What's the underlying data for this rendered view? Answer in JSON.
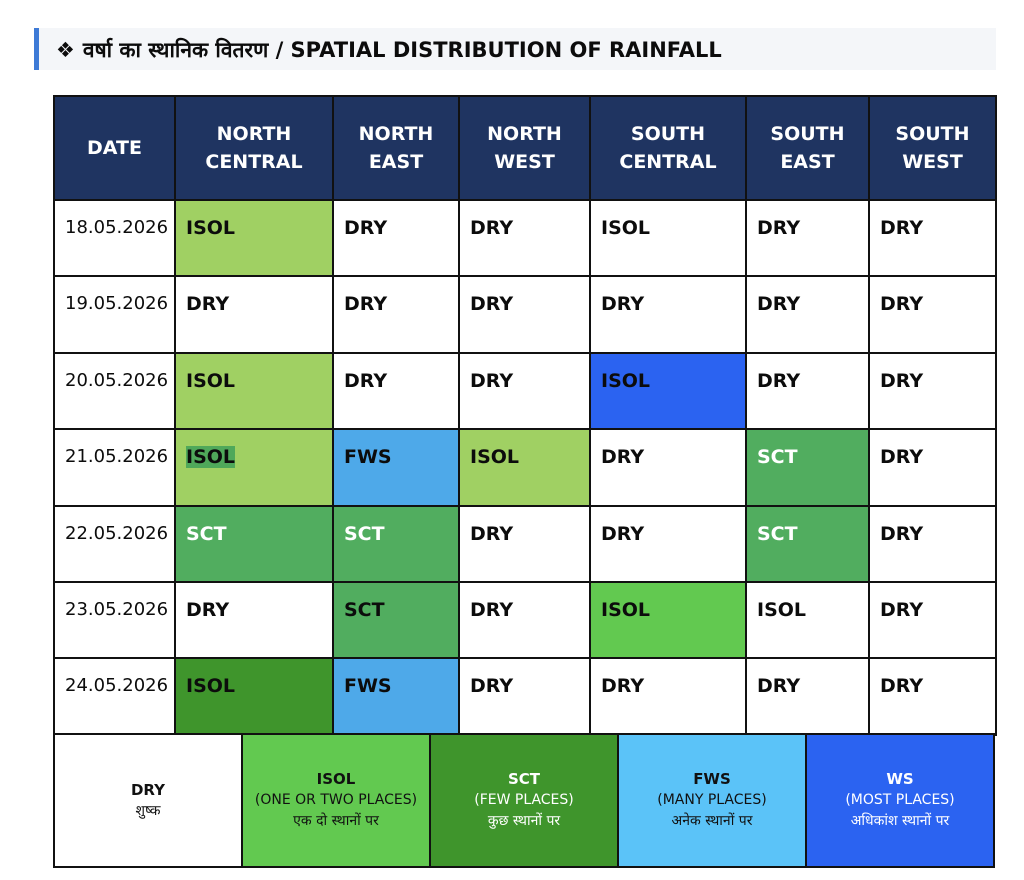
{
  "title": {
    "bullet": "❖",
    "text": "वर्षा का स्थानिक वितरण / SPATIAL DISTRIBUTION OF RAINFALL"
  },
  "table": {
    "headers": [
      {
        "line1": "DATE",
        "line2": ""
      },
      {
        "line1": "NORTH",
        "line2": "CENTRAL"
      },
      {
        "line1": "NORTH",
        "line2": "EAST"
      },
      {
        "line1": "NORTH",
        "line2": "WEST"
      },
      {
        "line1": "SOUTH",
        "line2": "CENTRAL"
      },
      {
        "line1": "SOUTH",
        "line2": "EAST"
      },
      {
        "line1": "SOUTH",
        "line2": "WEST"
      }
    ],
    "rows": [
      {
        "date": "18.05.2026",
        "cells": [
          "ISOL",
          "DRY",
          "DRY",
          "ISOL",
          "DRY",
          "DRY"
        ]
      },
      {
        "date": "19.05.2026",
        "cells": [
          "DRY",
          "DRY",
          "DRY",
          "DRY",
          "DRY",
          "DRY"
        ]
      },
      {
        "date": "20.05.2026",
        "cells": [
          "ISOL",
          "DRY",
          "DRY",
          "ISOL",
          "DRY",
          "DRY"
        ]
      },
      {
        "date": "21.05.2026",
        "cells": [
          "ISOL",
          "FWS",
          "ISOL",
          "DRY",
          "SCT",
          "DRY"
        ]
      },
      {
        "date": "22.05.2026",
        "cells": [
          "SCT",
          "SCT",
          "DRY",
          "DRY",
          "SCT",
          "DRY"
        ]
      },
      {
        "date": "23.05.2026",
        "cells": [
          "DRY",
          "SCT",
          "DRY",
          "ISOL",
          "ISOL",
          "DRY"
        ]
      },
      {
        "date": "24.05.2026",
        "cells": [
          "ISOL",
          "FWS",
          "DRY",
          "DRY",
          "DRY",
          "DRY"
        ]
      }
    ]
  },
  "legend": [
    {
      "code": "DRY",
      "en": "",
      "hi": "शुष्क"
    },
    {
      "code": "ISOL",
      "en": "(ONE OR TWO PLACES)",
      "hi": "एक दो स्थानों पर"
    },
    {
      "code": "SCT",
      "en": "(FEW PLACES)",
      "hi": "कुछ स्थानों पर"
    },
    {
      "code": "FWS",
      "en": "(MANY PLACES)",
      "hi": "अनेक स्थानों पर"
    },
    {
      "code": "WS",
      "en": "(MOST PLACES)",
      "hi": "अधिकांश स्थानों पर"
    }
  ],
  "colors": {
    "header_bg": "#1f3461",
    "isol_light": "#a0d063",
    "isol_bright": "#62c950",
    "sct": "#51ad5f",
    "sct_dark": "#3f952c",
    "fws": "#4ea9e9",
    "ws": "#2b63f1",
    "title_accent": "#3d7ad6"
  }
}
